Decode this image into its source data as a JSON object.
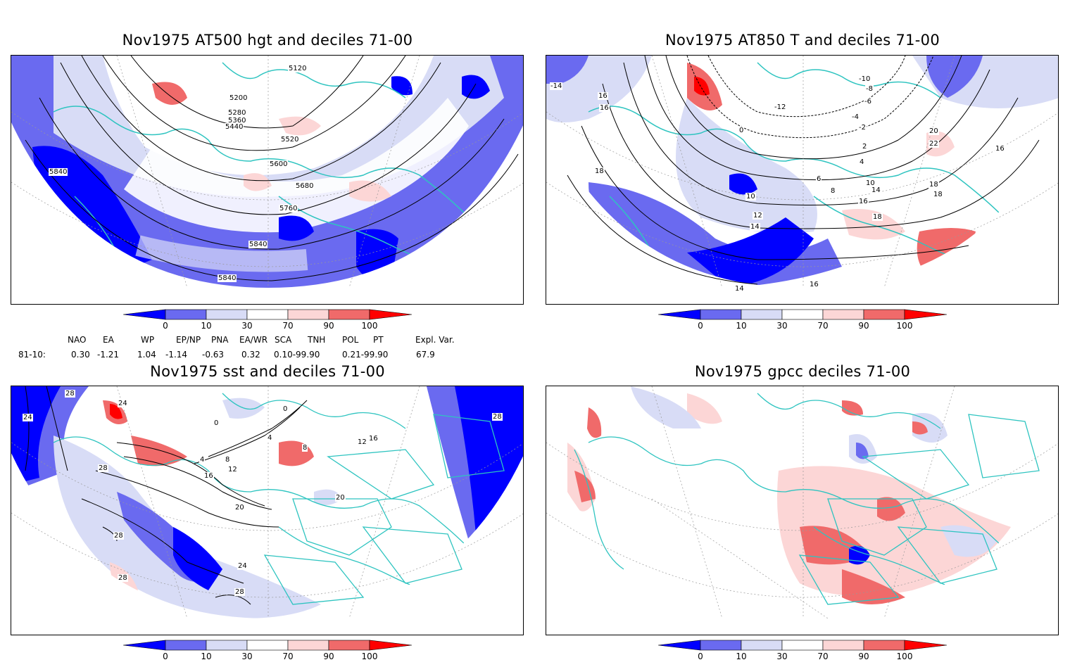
{
  "panels": [
    {
      "title": "Nov1975 AT500 hgt and deciles 71-00",
      "labels": [
        "5120",
        "5200",
        "5280",
        "5360",
        "5440",
        "5520",
        "5600",
        "5680",
        "5760",
        "5840",
        "5840",
        "5840"
      ]
    },
    {
      "title": "Nov1975 AT850 T and deciles 71-00",
      "labels": [
        "-14",
        "16",
        "16",
        "18",
        "-10",
        "-8",
        "-6",
        "-12",
        "-2",
        "-4",
        "0",
        "2",
        "4",
        "6",
        "8",
        "10",
        "10",
        "12",
        "14",
        "14",
        "16",
        "18",
        "20",
        "22",
        "16",
        "18",
        "14",
        "18",
        "16",
        "14"
      ]
    },
    {
      "title": "Nov1975 sst and deciles 71-00",
      "labels": [
        "24",
        "28",
        "24",
        "28",
        "28",
        "0",
        "0",
        "4",
        "4",
        "8",
        "8",
        "12",
        "16",
        "20",
        "20",
        "24",
        "28",
        "28",
        "16",
        "12",
        "28"
      ]
    },
    {
      "title": "Nov1975 gpcc deciles 71-00",
      "labels": []
    }
  ],
  "colorbar": {
    "ticks": [
      "0",
      "10",
      "30",
      "70",
      "90",
      "100"
    ],
    "colors": [
      "#0000ff",
      "#6a6af0",
      "#d8dcf6",
      "#ffffff",
      "#fcd6d6",
      "#f06a6a",
      "#ff0000"
    ]
  },
  "indices": {
    "row_label": "81-10:",
    "headers": [
      "NAO",
      "EA",
      "WP",
      "EP/NP",
      "PNA",
      "EA/WR",
      "SCA",
      "TNH",
      "POL",
      "PT",
      "Expl. Var."
    ],
    "values": [
      "0.30",
      "-1.21",
      "1.04",
      "-1.14",
      "-0.63",
      "0.32",
      "0.10-99.90",
      "",
      "0.21-99.90",
      "",
      "67.9"
    ]
  },
  "colors": {
    "coast": "#2ec4c0",
    "contour": "#000000",
    "grid": "#999999"
  }
}
